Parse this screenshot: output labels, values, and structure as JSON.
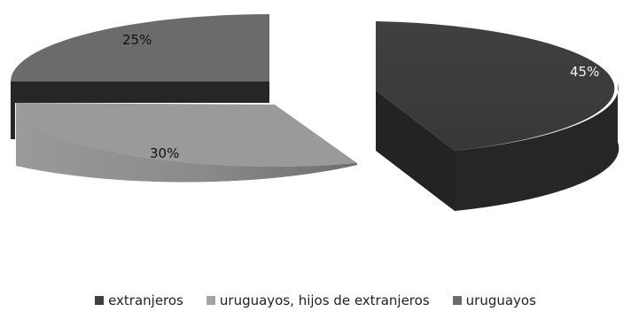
{
  "chart_data": {
    "type": "pie",
    "style": "3d-exploded",
    "title": "",
    "legend_position": "bottom",
    "slices": [
      {
        "name": "extranjeros",
        "value": 45,
        "label": "45%",
        "color": "#3f3f3f",
        "side_color": "#242424"
      },
      {
        "name": "uruguayos, hijos de extranjeros",
        "value": 30,
        "label": "30%",
        "color": "#9a9a9a",
        "side_color": "#838383"
      },
      {
        "name": "uruguayos",
        "value": 25,
        "label": "25%",
        "color": "#6b6b6b",
        "side_color": "#262626"
      }
    ]
  }
}
